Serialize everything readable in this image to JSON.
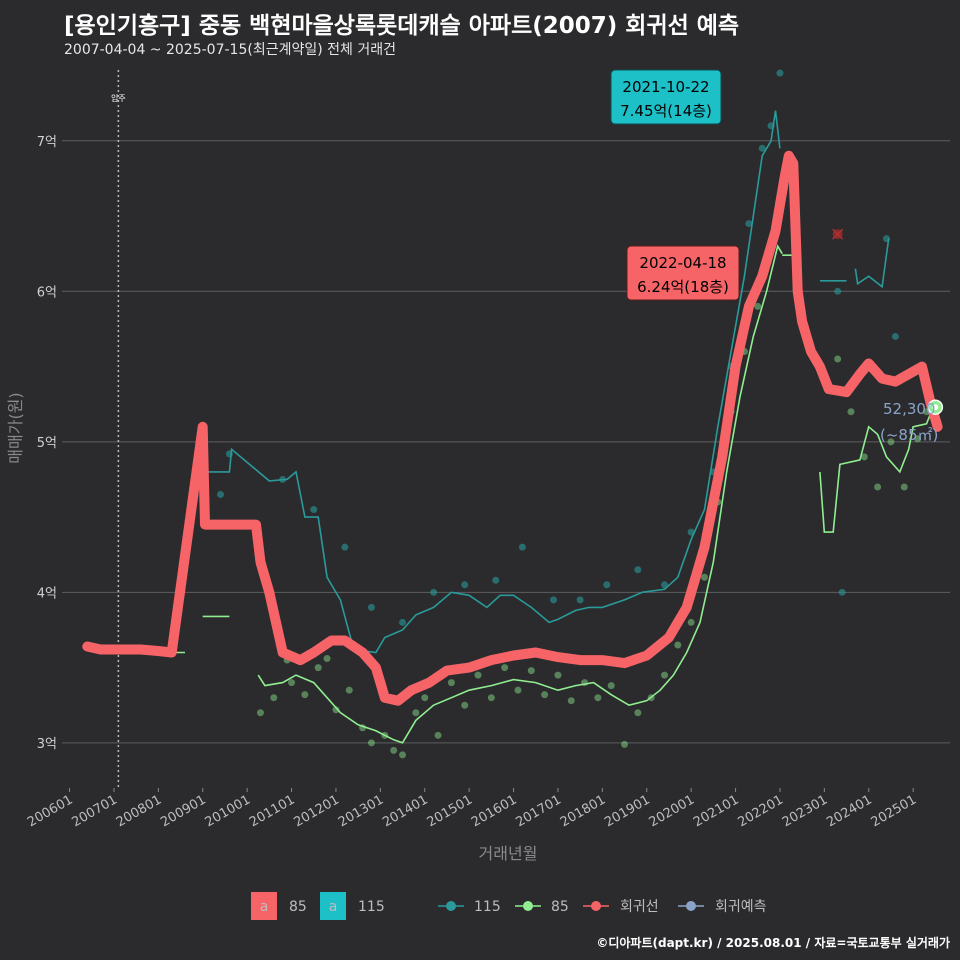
{
  "title": "[용인기흥구] 중동 백현마을상록롯데캐슬 아파트(2007) 회귀선 예측",
  "subtitle": "2007-04-04 ~ 2025-07-15(최근계약일) 전체 거래건",
  "caption": "©디아파트(dapt.kr) / 2025.08.01 / 자료=국토교통부 실거래가",
  "colors": {
    "background": "#2b2b2d",
    "grid": "#5e5e60",
    "s85": "#90ee90",
    "s115": "#2a9a9a",
    "regression": "#f76467",
    "forecast": "#8aa3c8",
    "label115": "#1ec0c8",
    "label85": "#f76467"
  },
  "chart_data": {
    "type": "line",
    "xlabel": "거래년월",
    "ylabel": "매매가(원)",
    "y_unit": "억",
    "ylim": [
      2.7,
      7.55
    ],
    "x_range": [
      "2005-11",
      "2025-10"
    ],
    "x_ticks": [
      "200601",
      "200701",
      "200801",
      "200901",
      "201001",
      "201101",
      "201201",
      "201301",
      "201401",
      "201501",
      "201601",
      "201701",
      "201801",
      "201901",
      "202001",
      "202101",
      "202201",
      "202301",
      "202401",
      "202501"
    ],
    "y_ticks": [
      3,
      4,
      5,
      6,
      7
    ],
    "y_tick_labels": [
      "3억",
      "4억",
      "5억",
      "6억",
      "7억"
    ],
    "move_in_line": {
      "x": 2007.1,
      "label": "입주"
    },
    "series": [
      {
        "name": "115",
        "kind": "moving-average",
        "values": [
          [
            2009.0,
            4.66
          ],
          [
            2009.05,
            4.8
          ],
          [
            2009.6,
            4.8
          ],
          [
            2009.65,
            4.95
          ],
          [
            2010.5,
            4.74
          ],
          [
            2010.9,
            4.75
          ],
          [
            2011.1,
            4.8
          ],
          [
            2011.3,
            4.5
          ],
          [
            2011.6,
            4.5
          ],
          [
            2011.8,
            4.1
          ],
          [
            2012.1,
            3.95
          ],
          [
            2012.4,
            3.62
          ],
          [
            2012.9,
            3.6
          ],
          [
            2013.1,
            3.7
          ],
          [
            2013.5,
            3.75
          ],
          [
            2013.8,
            3.85
          ],
          [
            2014.2,
            3.9
          ],
          [
            2014.6,
            4.0
          ],
          [
            2015.0,
            3.98
          ],
          [
            2015.4,
            3.9
          ],
          [
            2015.7,
            3.98
          ],
          [
            2016.0,
            3.98
          ],
          [
            2016.4,
            3.9
          ],
          [
            2016.8,
            3.8
          ],
          [
            2017.0,
            3.82
          ],
          [
            2017.4,
            3.88
          ],
          [
            2017.7,
            3.9
          ],
          [
            2018.0,
            3.9
          ],
          [
            2018.5,
            3.95
          ],
          [
            2018.9,
            4.0
          ],
          [
            2019.4,
            4.02
          ],
          [
            2019.7,
            4.1
          ],
          [
            2020.0,
            4.35
          ],
          [
            2020.3,
            4.55
          ],
          [
            2020.6,
            5.1
          ],
          [
            2020.9,
            5.6
          ],
          [
            2021.2,
            6.1
          ],
          [
            2021.4,
            6.5
          ],
          [
            2021.6,
            6.9
          ],
          [
            2021.8,
            7.0
          ],
          [
            2021.9,
            7.2
          ],
          [
            2022.0,
            6.95
          ]
        ]
      },
      {
        "name": "115",
        "kind": "moving-average-2",
        "values": [
          [
            2022.9,
            6.07
          ],
          [
            2023.5,
            6.07
          ]
        ]
      },
      {
        "name": "115",
        "kind": "moving-average-3",
        "values": [
          [
            2023.7,
            6.15
          ],
          [
            2023.75,
            6.05
          ],
          [
            2024.0,
            6.1
          ],
          [
            2024.3,
            6.03
          ],
          [
            2024.45,
            6.35
          ]
        ]
      },
      {
        "name": "85",
        "kind": "moving-average",
        "values": [
          [
            2008.3,
            3.62
          ],
          [
            2008.4,
            3.6
          ],
          [
            2008.6,
            3.6
          ]
        ]
      },
      {
        "name": "85",
        "kind": "moving-average-2",
        "values": [
          [
            2009.0,
            3.84
          ],
          [
            2009.6,
            3.84
          ]
        ]
      },
      {
        "name": "85",
        "kind": "moving-average-3",
        "values": [
          [
            2010.25,
            3.45
          ],
          [
            2010.4,
            3.38
          ],
          [
            2010.8,
            3.4
          ],
          [
            2011.1,
            3.45
          ],
          [
            2011.5,
            3.4
          ],
          [
            2011.8,
            3.3
          ],
          [
            2012.1,
            3.2
          ],
          [
            2012.5,
            3.12
          ],
          [
            2012.9,
            3.08
          ],
          [
            2013.3,
            3.02
          ],
          [
            2013.5,
            3.0
          ],
          [
            2013.8,
            3.15
          ],
          [
            2014.2,
            3.25
          ],
          [
            2014.6,
            3.3
          ],
          [
            2015.0,
            3.35
          ],
          [
            2015.5,
            3.38
          ],
          [
            2016.0,
            3.42
          ],
          [
            2016.5,
            3.4
          ],
          [
            2017.0,
            3.35
          ],
          [
            2017.4,
            3.38
          ],
          [
            2017.8,
            3.4
          ],
          [
            2018.2,
            3.32
          ],
          [
            2018.6,
            3.25
          ],
          [
            2019.0,
            3.28
          ],
          [
            2019.3,
            3.35
          ],
          [
            2019.6,
            3.45
          ],
          [
            2019.9,
            3.6
          ],
          [
            2020.2,
            3.8
          ],
          [
            2020.5,
            4.2
          ],
          [
            2020.8,
            4.8
          ],
          [
            2021.1,
            5.3
          ],
          [
            2021.4,
            5.7
          ],
          [
            2021.7,
            6.0
          ],
          [
            2021.95,
            6.3
          ],
          [
            2022.05,
            6.25
          ]
        ]
      },
      {
        "name": "85",
        "kind": "moving-average-4",
        "values": [
          [
            2022.05,
            6.24
          ],
          [
            2022.35,
            6.24
          ]
        ]
      },
      {
        "name": "85",
        "kind": "moving-average-5",
        "values": [
          [
            2022.9,
            4.8
          ],
          [
            2023.0,
            4.4
          ],
          [
            2023.2,
            4.4
          ],
          [
            2023.35,
            4.85
          ],
          [
            2023.8,
            4.88
          ],
          [
            2024.0,
            5.1
          ],
          [
            2024.2,
            5.05
          ],
          [
            2024.4,
            4.9
          ],
          [
            2024.7,
            4.8
          ],
          [
            2024.9,
            4.95
          ],
          [
            2025.0,
            5.1
          ],
          [
            2025.3,
            5.12
          ],
          [
            2025.45,
            5.23
          ]
        ]
      },
      {
        "name": "회귀선",
        "kind": "regression",
        "values": [
          [
            2006.4,
            3.64
          ],
          [
            2006.7,
            3.62
          ],
          [
            2007.0,
            3.62
          ],
          [
            2007.6,
            3.62
          ],
          [
            2008.0,
            3.61
          ],
          [
            2008.3,
            3.6
          ],
          [
            2009.0,
            5.1
          ],
          [
            2009.05,
            4.45
          ],
          [
            2009.5,
            4.45
          ],
          [
            2010.2,
            4.45
          ],
          [
            2010.3,
            4.2
          ],
          [
            2010.5,
            4.0
          ],
          [
            2010.8,
            3.6
          ],
          [
            2011.2,
            3.55
          ],
          [
            2011.5,
            3.6
          ],
          [
            2011.9,
            3.68
          ],
          [
            2012.2,
            3.68
          ],
          [
            2012.6,
            3.6
          ],
          [
            2012.9,
            3.5
          ],
          [
            2013.1,
            3.3
          ],
          [
            2013.4,
            3.28
          ],
          [
            2013.7,
            3.35
          ],
          [
            2014.1,
            3.4
          ],
          [
            2014.5,
            3.48
          ],
          [
            2015.0,
            3.5
          ],
          [
            2015.5,
            3.55
          ],
          [
            2016.0,
            3.58
          ],
          [
            2016.5,
            3.6
          ],
          [
            2017.0,
            3.57
          ],
          [
            2017.5,
            3.55
          ],
          [
            2018.0,
            3.55
          ],
          [
            2018.5,
            3.53
          ],
          [
            2019.0,
            3.58
          ],
          [
            2019.5,
            3.7
          ],
          [
            2019.9,
            3.9
          ],
          [
            2020.3,
            4.3
          ],
          [
            2020.7,
            4.9
          ],
          [
            2021.0,
            5.5
          ],
          [
            2021.3,
            5.9
          ],
          [
            2021.6,
            6.1
          ],
          [
            2021.9,
            6.4
          ],
          [
            2022.1,
            6.75
          ],
          [
            2022.2,
            6.9
          ],
          [
            2022.3,
            6.85
          ],
          [
            2022.4,
            6.0
          ],
          [
            2022.5,
            5.8
          ],
          [
            2022.7,
            5.6
          ],
          [
            2022.9,
            5.5
          ],
          [
            2023.1,
            5.35
          ],
          [
            2023.5,
            5.33
          ],
          [
            2023.8,
            5.45
          ],
          [
            2024.0,
            5.52
          ],
          [
            2024.3,
            5.42
          ],
          [
            2024.6,
            5.4
          ],
          [
            2024.9,
            5.45
          ],
          [
            2025.2,
            5.5
          ],
          [
            2025.4,
            5.25
          ],
          [
            2025.55,
            5.1
          ]
        ]
      },
      {
        "name": "회귀예측",
        "kind": "forecast",
        "values": [
          [
            2025.5,
            5.23
          ]
        ]
      }
    ],
    "scatter": {
      "85": [
        [
          2010.3,
          3.2
        ],
        [
          2010.6,
          3.3
        ],
        [
          2010.9,
          3.55
        ],
        [
          2011.0,
          3.4
        ],
        [
          2011.3,
          3.32
        ],
        [
          2011.6,
          3.5
        ],
        [
          2011.8,
          3.56
        ],
        [
          2012.0,
          3.22
        ],
        [
          2012.3,
          3.35
        ],
        [
          2012.6,
          3.1
        ],
        [
          2012.8,
          3.0
        ],
        [
          2013.1,
          3.05
        ],
        [
          2013.3,
          2.95
        ],
        [
          2013.5,
          2.92
        ],
        [
          2013.8,
          3.2
        ],
        [
          2014.0,
          3.3
        ],
        [
          2014.3,
          3.05
        ],
        [
          2014.6,
          3.4
        ],
        [
          2014.9,
          3.25
        ],
        [
          2015.2,
          3.45
        ],
        [
          2015.5,
          3.3
        ],
        [
          2015.8,
          3.5
        ],
        [
          2016.1,
          3.35
        ],
        [
          2016.4,
          3.48
        ],
        [
          2016.7,
          3.32
        ],
        [
          2017.0,
          3.45
        ],
        [
          2017.3,
          3.28
        ],
        [
          2017.6,
          3.4
        ],
        [
          2017.9,
          3.3
        ],
        [
          2018.2,
          3.38
        ],
        [
          2018.5,
          2.99
        ],
        [
          2018.8,
          3.2
        ],
        [
          2019.1,
          3.3
        ],
        [
          2019.4,
          3.45
        ],
        [
          2019.7,
          3.65
        ],
        [
          2020.0,
          3.8
        ],
        [
          2020.3,
          4.1
        ],
        [
          2020.6,
          4.6
        ],
        [
          2020.9,
          5.2
        ],
        [
          2021.2,
          5.6
        ],
        [
          2021.5,
          5.9
        ],
        [
          2021.7,
          6.2
        ],
        [
          2021.9,
          6.4
        ],
        [
          2023.3,
          5.55
        ],
        [
          2023.6,
          5.2
        ],
        [
          2023.9,
          4.9
        ],
        [
          2024.2,
          4.7
        ],
        [
          2024.5,
          5.0
        ],
        [
          2024.8,
          4.7
        ],
        [
          2025.1,
          5.02
        ],
        [
          2025.3,
          5.2
        ]
      ],
      "115": [
        [
          2009.4,
          4.65
        ],
        [
          2009.6,
          4.92
        ],
        [
          2010.8,
          4.75
        ],
        [
          2011.5,
          4.55
        ],
        [
          2012.2,
          4.3
        ],
        [
          2012.8,
          3.9
        ],
        [
          2013.5,
          3.8
        ],
        [
          2014.2,
          4.0
        ],
        [
          2014.9,
          4.05
        ],
        [
          2015.6,
          4.08
        ],
        [
          2016.2,
          4.3
        ],
        [
          2016.9,
          3.95
        ],
        [
          2017.5,
          3.95
        ],
        [
          2018.1,
          4.05
        ],
        [
          2018.8,
          4.15
        ],
        [
          2019.4,
          4.05
        ],
        [
          2020.0,
          4.4
        ],
        [
          2020.5,
          4.8
        ],
        [
          2020.9,
          5.5
        ],
        [
          2021.3,
          6.45
        ],
        [
          2021.6,
          6.95
        ],
        [
          2021.8,
          7.1
        ],
        [
          2022.0,
          7.45
        ],
        [
          2023.3,
          6.0
        ],
        [
          2023.4,
          4.0
        ],
        [
          2024.4,
          6.35
        ],
        [
          2024.6,
          5.7
        ]
      ],
      "excluded": [
        [
          2023.3,
          6.38
        ]
      ]
    }
  },
  "annotations": {
    "label115": {
      "line1": "2021-10-22",
      "line2": "7.45억(14층)"
    },
    "label85": {
      "line1": "2022-04-18",
      "line2": "6.24억(18층)"
    },
    "forecast": {
      "line1": "52,300",
      "line2": "(~85㎡)"
    }
  },
  "legend": {
    "fill": [
      {
        "key": "a",
        "label": "85"
      },
      {
        "key": "a",
        "label": "115"
      }
    ],
    "lines": [
      {
        "label": "115"
      },
      {
        "label": "85"
      },
      {
        "label": "회귀선"
      },
      {
        "label": "회귀예측"
      }
    ]
  }
}
